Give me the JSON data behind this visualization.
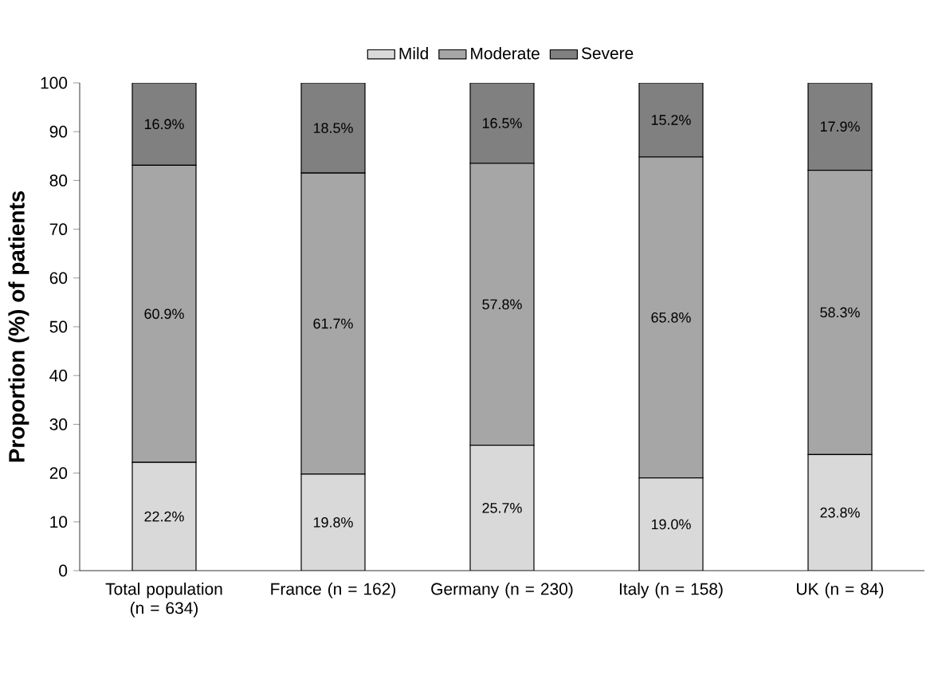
{
  "chart_data": {
    "type": "bar",
    "stacked": true,
    "ylabel": "Proportion (%) of patients",
    "categories": [
      "Total population (n = 634)",
      "France (n = 162)",
      "Germany (n = 230)",
      "Italy (n = 158)",
      "UK (n = 84)"
    ],
    "ylim": [
      0,
      100
    ],
    "yticks": [
      0,
      10,
      20,
      30,
      40,
      50,
      60,
      70,
      80,
      90,
      100
    ],
    "legend": "top",
    "grid": false,
    "series": [
      {
        "name": "Mild",
        "color": "#d9d9d9",
        "values": [
          22.2,
          19.8,
          25.7,
          19.0,
          23.8
        ],
        "value_labels": [
          "22.2%",
          "19.8%",
          "25.7%",
          "19.0%",
          "23.8%"
        ]
      },
      {
        "name": "Moderate",
        "color": "#a6a6a6",
        "values": [
          60.9,
          61.7,
          57.8,
          65.8,
          58.3
        ],
        "value_labels": [
          "60.9%",
          "61.7%",
          "57.8%",
          "65.8%",
          "58.3%"
        ]
      },
      {
        "name": "Severe",
        "color": "#808080",
        "values": [
          16.9,
          18.5,
          16.5,
          15.2,
          17.9
        ],
        "value_labels": [
          "16.9%",
          "18.5%",
          "16.5%",
          "15.2%",
          "17.9%"
        ]
      }
    ]
  }
}
